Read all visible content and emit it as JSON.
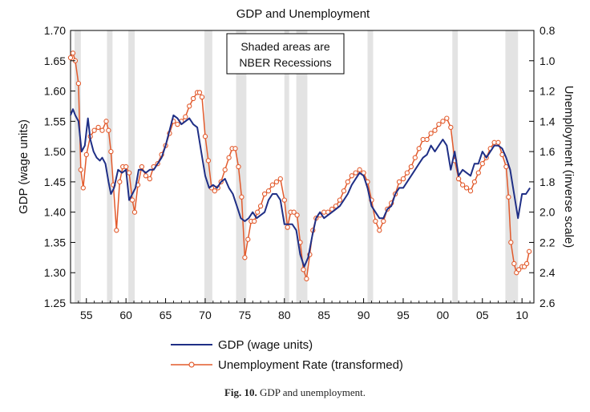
{
  "chart_data": {
    "type": "line",
    "title": "GDP and Unemployment",
    "ylabel": "GDP (wage units)",
    "y2label": "Unemployment (inverse scale)",
    "xlim": [
      1953,
      2011.5
    ],
    "ylim": [
      1.25,
      1.7
    ],
    "y2lim": [
      0.8,
      2.6
    ],
    "y2_inverted": true,
    "x_tick_values": [
      1955,
      1960,
      1965,
      1970,
      1975,
      1980,
      1985,
      1990,
      1995,
      2000,
      2005,
      2010
    ],
    "x_tick_labels": [
      "55",
      "60",
      "65",
      "70",
      "75",
      "80",
      "85",
      "90",
      "95",
      "00",
      "05",
      "10"
    ],
    "y_ticks": [
      "1.25",
      "1.30",
      "1.35",
      "1.40",
      "1.45",
      "1.50",
      "1.55",
      "1.60",
      "1.65",
      "1.70"
    ],
    "y2_ticks": [
      "0.8",
      "1.0",
      "1.2",
      "1.4",
      "1.6",
      "1.8",
      "2.0",
      "2.2",
      "2.4",
      "2.6"
    ],
    "annotation": [
      "Shaded areas are",
      "NBER Recessions"
    ],
    "legend_position": "bottom",
    "grid": false,
    "recessions": [
      [
        1953.5,
        1954.3
      ],
      [
        1957.6,
        1958.3
      ],
      [
        1960.3,
        1961.1
      ],
      [
        1969.9,
        1970.9
      ],
      [
        1973.9,
        1975.2
      ],
      [
        1980.0,
        1980.6
      ],
      [
        1981.5,
        1982.9
      ],
      [
        1990.5,
        1991.2
      ],
      [
        2001.2,
        2001.9
      ],
      [
        2007.9,
        2009.5
      ]
    ],
    "series": [
      {
        "name": "GDP (wage units)",
        "axis": "left",
        "color": "#1f2f86",
        "marker": "none",
        "x": [
          1953.0,
          1953.3,
          1953.6,
          1954.0,
          1954.4,
          1954.8,
          1955.2,
          1955.5,
          1955.9,
          1956.3,
          1956.7,
          1957.0,
          1957.4,
          1957.8,
          1958.1,
          1958.5,
          1959.0,
          1959.5,
          1960.0,
          1960.4,
          1960.8,
          1961.2,
          1961.6,
          1962.0,
          1962.5,
          1963.0,
          1963.5,
          1964.0,
          1964.5,
          1965.0,
          1965.5,
          1966.0,
          1966.5,
          1967.0,
          1967.5,
          1968.0,
          1968.5,
          1969.0,
          1969.5,
          1970.0,
          1970.5,
          1971.0,
          1971.5,
          1972.0,
          1972.5,
          1973.0,
          1973.5,
          1974.0,
          1974.5,
          1975.0,
          1975.5,
          1976.0,
          1976.5,
          1977.0,
          1977.5,
          1978.0,
          1978.5,
          1979.0,
          1979.5,
          1980.0,
          1980.5,
          1981.0,
          1981.5,
          1982.0,
          1982.5,
          1983.0,
          1983.5,
          1984.0,
          1984.5,
          1985.0,
          1985.5,
          1986.0,
          1986.5,
          1987.0,
          1987.5,
          1988.0,
          1988.5,
          1989.0,
          1989.5,
          1990.0,
          1990.5,
          1991.0,
          1991.5,
          1992.0,
          1992.5,
          1993.0,
          1993.5,
          1994.0,
          1994.5,
          1995.0,
          1995.5,
          1996.0,
          1996.5,
          1997.0,
          1997.5,
          1998.0,
          1998.5,
          1999.0,
          1999.5,
          2000.0,
          2000.5,
          2001.0,
          2001.5,
          2002.0,
          2002.5,
          2003.0,
          2003.5,
          2004.0,
          2004.5,
          2005.0,
          2005.5,
          2006.0,
          2006.5,
          2007.0,
          2007.5,
          2008.0,
          2008.5,
          2009.0,
          2009.5,
          2010.0,
          2010.5,
          2011.0
        ],
        "values": [
          1.56,
          1.57,
          1.56,
          1.55,
          1.5,
          1.51,
          1.555,
          1.52,
          1.5,
          1.49,
          1.485,
          1.49,
          1.48,
          1.45,
          1.43,
          1.44,
          1.47,
          1.465,
          1.47,
          1.42,
          1.43,
          1.44,
          1.47,
          1.47,
          1.465,
          1.47,
          1.47,
          1.48,
          1.49,
          1.51,
          1.535,
          1.56,
          1.555,
          1.545,
          1.55,
          1.555,
          1.545,
          1.54,
          1.5,
          1.46,
          1.44,
          1.445,
          1.44,
          1.45,
          1.455,
          1.44,
          1.43,
          1.41,
          1.39,
          1.385,
          1.39,
          1.4,
          1.39,
          1.395,
          1.4,
          1.42,
          1.43,
          1.43,
          1.42,
          1.38,
          1.38,
          1.38,
          1.37,
          1.33,
          1.31,
          1.325,
          1.36,
          1.39,
          1.4,
          1.39,
          1.395,
          1.4,
          1.405,
          1.41,
          1.42,
          1.43,
          1.445,
          1.455,
          1.465,
          1.46,
          1.44,
          1.41,
          1.4,
          1.39,
          1.39,
          1.405,
          1.41,
          1.43,
          1.44,
          1.44,
          1.45,
          1.46,
          1.47,
          1.48,
          1.49,
          1.495,
          1.51,
          1.5,
          1.51,
          1.52,
          1.51,
          1.47,
          1.5,
          1.46,
          1.47,
          1.465,
          1.46,
          1.48,
          1.48,
          1.5,
          1.49,
          1.5,
          1.51,
          1.51,
          1.505,
          1.49,
          1.47,
          1.43,
          1.39,
          1.43,
          1.43,
          1.44
        ]
      },
      {
        "name": "Unemployment Rate (transformed)",
        "axis": "right",
        "color": "#e25a2c",
        "marker": "circle",
        "x": [
          1953.0,
          1953.3,
          1953.6,
          1954.0,
          1954.3,
          1954.6,
          1955.0,
          1955.5,
          1956.0,
          1956.5,
          1957.0,
          1957.5,
          1957.8,
          1958.1,
          1958.4,
          1958.8,
          1959.2,
          1959.6,
          1960.0,
          1960.4,
          1960.8,
          1961.1,
          1961.5,
          1962.0,
          1962.5,
          1963.0,
          1963.5,
          1964.0,
          1964.5,
          1965.0,
          1965.5,
          1966.0,
          1966.5,
          1967.0,
          1967.5,
          1968.0,
          1968.5,
          1969.0,
          1969.3,
          1969.6,
          1970.0,
          1970.4,
          1970.8,
          1971.2,
          1971.6,
          1972.0,
          1972.5,
          1973.0,
          1973.4,
          1973.8,
          1974.2,
          1974.6,
          1975.0,
          1975.4,
          1975.8,
          1976.2,
          1976.6,
          1977.0,
          1977.5,
          1978.0,
          1978.5,
          1979.0,
          1979.5,
          1980.0,
          1980.4,
          1980.8,
          1981.2,
          1981.6,
          1982.0,
          1982.4,
          1982.8,
          1983.2,
          1983.6,
          1984.0,
          1984.5,
          1985.0,
          1985.5,
          1986.0,
          1986.5,
          1987.0,
          1987.5,
          1988.0,
          1988.5,
          1989.0,
          1989.5,
          1990.0,
          1990.5,
          1991.0,
          1991.5,
          1992.0,
          1992.5,
          1993.0,
          1993.5,
          1994.0,
          1994.5,
          1995.0,
          1995.5,
          1996.0,
          1996.5,
          1997.0,
          1997.5,
          1998.0,
          1998.5,
          1999.0,
          1999.5,
          2000.0,
          2000.5,
          2001.0,
          2001.5,
          2002.0,
          2002.5,
          2003.0,
          2003.5,
          2004.0,
          2004.5,
          2005.0,
          2005.5,
          2006.0,
          2006.5,
          2007.0,
          2007.5,
          2008.0,
          2008.3,
          2008.6,
          2009.0,
          2009.3,
          2009.6,
          2010.0,
          2010.3,
          2010.6,
          2010.9
        ],
        "values": [
          0.98,
          0.95,
          1.0,
          1.15,
          1.72,
          1.84,
          1.62,
          1.5,
          1.46,
          1.44,
          1.46,
          1.4,
          1.46,
          1.6,
          1.82,
          2.12,
          1.8,
          1.7,
          1.7,
          1.74,
          1.92,
          2.0,
          1.82,
          1.7,
          1.76,
          1.78,
          1.7,
          1.68,
          1.62,
          1.56,
          1.48,
          1.4,
          1.42,
          1.4,
          1.37,
          1.3,
          1.25,
          1.21,
          1.21,
          1.24,
          1.5,
          1.66,
          1.84,
          1.86,
          1.84,
          1.8,
          1.72,
          1.64,
          1.58,
          1.58,
          1.7,
          1.9,
          2.3,
          2.18,
          2.06,
          2.06,
          2.0,
          1.96,
          1.88,
          1.86,
          1.82,
          1.8,
          1.78,
          1.92,
          2.1,
          2.0,
          2.0,
          2.02,
          2.2,
          2.38,
          2.44,
          2.28,
          2.12,
          2.04,
          2.02,
          2.0,
          2.0,
          1.98,
          1.96,
          1.92,
          1.86,
          1.8,
          1.76,
          1.74,
          1.72,
          1.74,
          1.8,
          1.92,
          2.06,
          2.12,
          2.06,
          1.98,
          1.94,
          1.88,
          1.8,
          1.78,
          1.74,
          1.7,
          1.64,
          1.58,
          1.52,
          1.52,
          1.48,
          1.46,
          1.42,
          1.4,
          1.38,
          1.44,
          1.66,
          1.78,
          1.82,
          1.84,
          1.86,
          1.8,
          1.74,
          1.68,
          1.64,
          1.58,
          1.54,
          1.54,
          1.62,
          1.7,
          1.9,
          2.2,
          2.34,
          2.4,
          2.38,
          2.36,
          2.36,
          2.34,
          2.26
        ]
      }
    ]
  },
  "caption": {
    "prefix": "Fig. 10.",
    "text": "GDP and unemployment."
  }
}
